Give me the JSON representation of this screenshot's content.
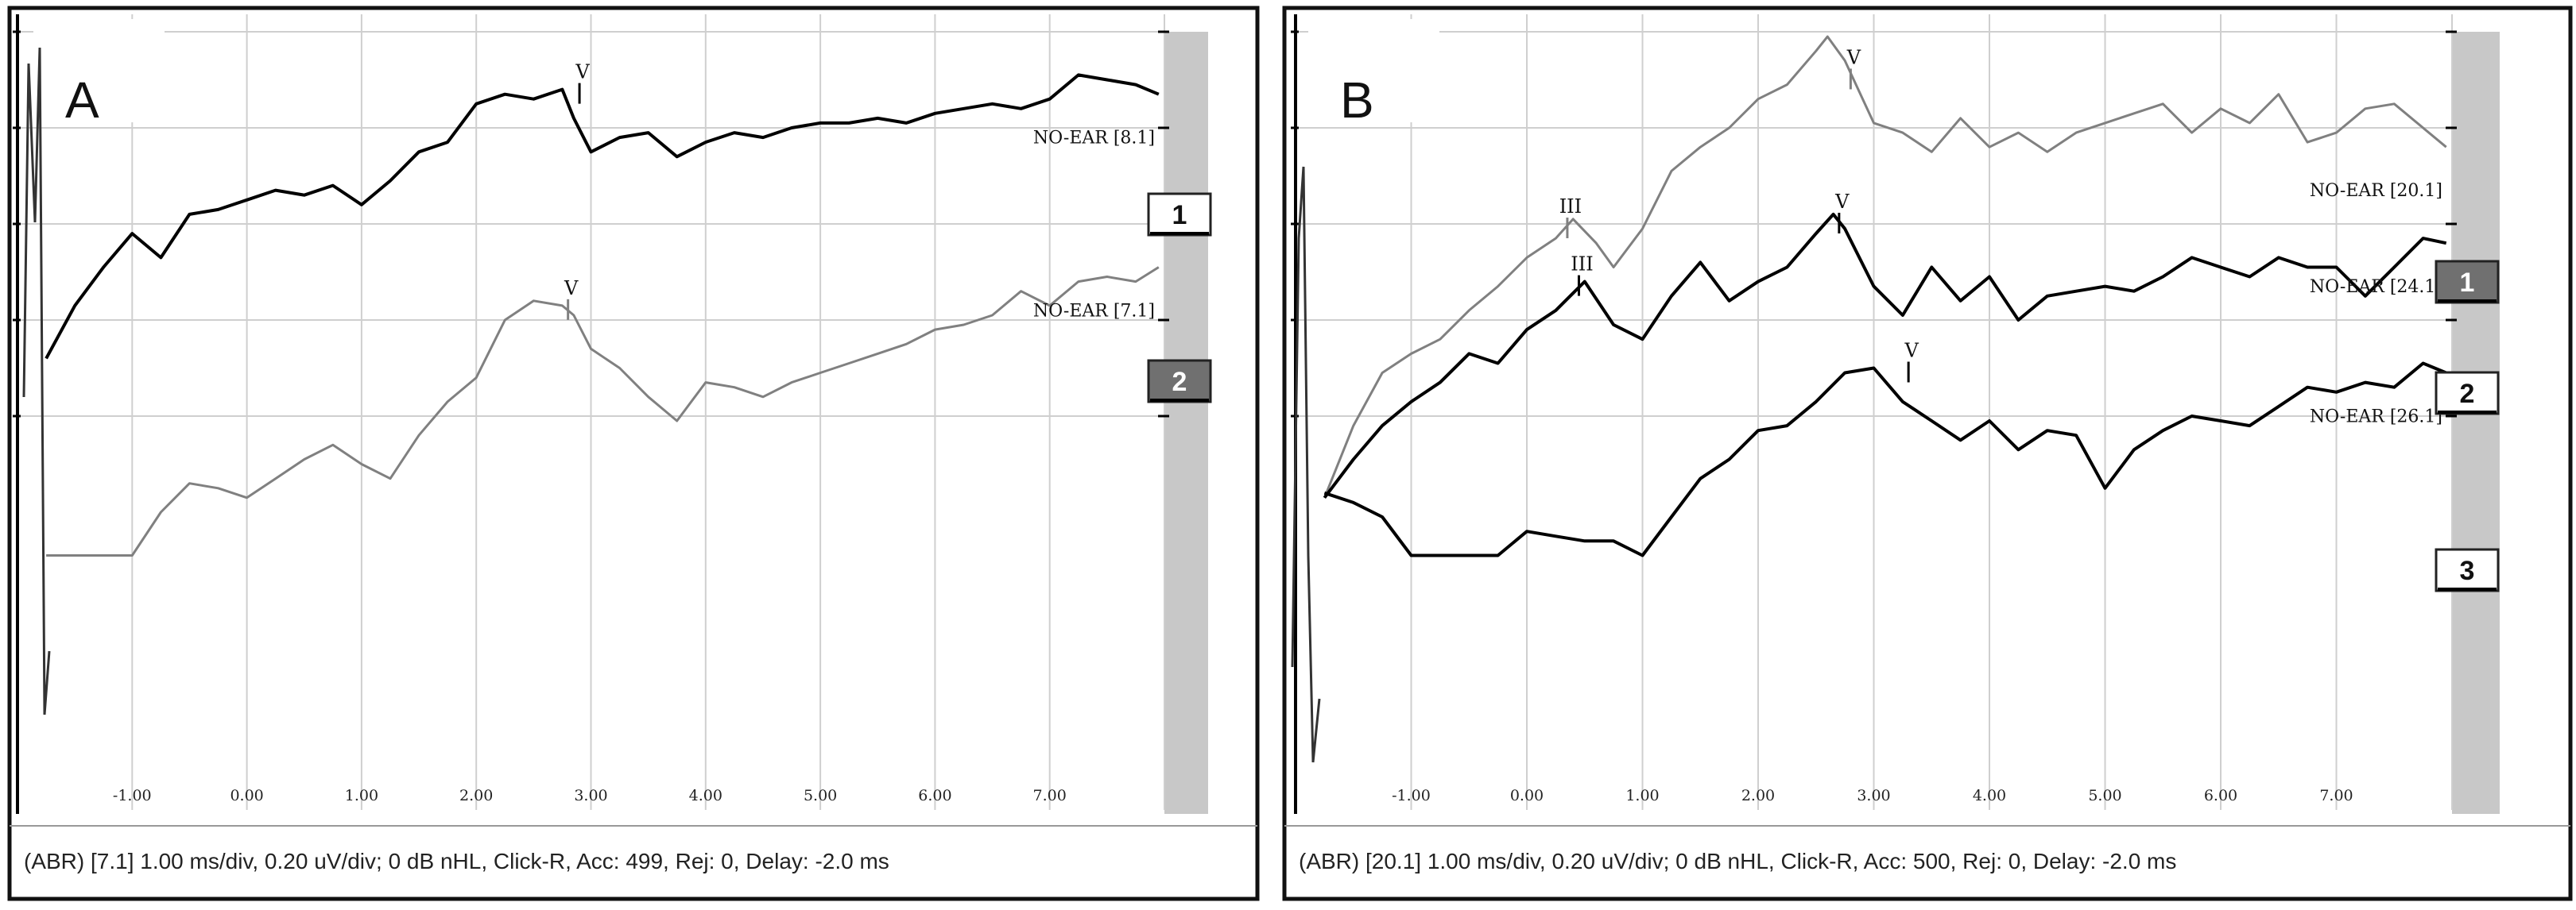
{
  "chart_data": [
    {
      "type": "line",
      "panel_label": "A",
      "status": "(ABR) [7.1]  1.00 ms/div,  0.20 uV/div;  0 dB nHL,  Click-R,  Acc: 499,  Rej: 0,  Delay: -2.0 ms",
      "x_ticks": [
        "-1.00",
        "0.00",
        "1.00",
        "2.00",
        "3.00",
        "4.00",
        "5.00",
        "6.00",
        "7.00"
      ],
      "xlim": [
        -2.0,
        8.0
      ],
      "channels": [
        {
          "label": "1",
          "active": false
        },
        {
          "label": "2",
          "active": true
        }
      ],
      "series": [
        {
          "tag": "NO-EAR [8.1]",
          "color": "#000000",
          "stroke": 4,
          "x": [
            -1.75,
            -1.5,
            -1.25,
            -1.0,
            -0.75,
            -0.5,
            -0.25,
            0.0,
            0.25,
            0.5,
            0.75,
            1.0,
            1.25,
            1.5,
            1.75,
            2.0,
            2.25,
            2.5,
            2.75,
            2.85,
            3.0,
            3.25,
            3.5,
            3.75,
            4.0,
            4.25,
            4.5,
            4.75,
            5.0,
            5.25,
            5.5,
            5.75,
            6.0,
            6.25,
            6.5,
            6.75,
            7.0,
            7.25,
            7.5,
            7.75,
            7.95
          ],
          "y": [
            -1.9,
            -1.35,
            -0.95,
            -0.6,
            -0.85,
            -0.4,
            -0.35,
            -0.25,
            -0.15,
            -0.2,
            -0.1,
            -0.3,
            -0.05,
            0.25,
            0.35,
            0.75,
            0.85,
            0.8,
            0.9,
            0.6,
            0.25,
            0.4,
            0.45,
            0.2,
            0.35,
            0.45,
            0.4,
            0.5,
            0.55,
            0.55,
            0.6,
            0.55,
            0.65,
            0.7,
            0.75,
            0.7,
            0.8,
            1.05,
            1.0,
            0.95,
            0.85
          ],
          "peaks": [
            {
              "label": "V",
              "x": 2.9,
              "y": 0.9
            }
          ]
        },
        {
          "tag": "NO-EAR [7.1]",
          "color": "#808080",
          "stroke": 3,
          "x": [
            -1.75,
            -1.5,
            -1.0,
            -0.75,
            -0.5,
            -0.25,
            0.0,
            0.25,
            0.5,
            0.75,
            1.0,
            1.25,
            1.5,
            1.75,
            2.0,
            2.25,
            2.5,
            2.75,
            2.85,
            3.0,
            3.25,
            3.5,
            3.75,
            4.0,
            4.25,
            4.5,
            4.75,
            5.0,
            5.25,
            5.5,
            5.75,
            6.0,
            6.25,
            6.5,
            6.75,
            7.0,
            7.25,
            7.5,
            7.75,
            7.95
          ],
          "y": [
            -3.95,
            -3.95,
            -3.95,
            -3.5,
            -3.2,
            -3.25,
            -3.35,
            -3.15,
            -2.95,
            -2.8,
            -3.0,
            -3.15,
            -2.7,
            -2.35,
            -2.1,
            -1.5,
            -1.3,
            -1.35,
            -1.45,
            -1.8,
            -2.0,
            -2.3,
            -2.55,
            -2.15,
            -2.2,
            -2.3,
            -2.15,
            -2.05,
            -1.95,
            -1.85,
            -1.75,
            -1.6,
            -1.55,
            -1.45,
            -1.2,
            -1.35,
            -1.1,
            -1.05,
            -1.1,
            -0.95
          ],
          "peaks": [
            {
              "label": "V",
              "x": 2.8,
              "y": -1.35
            }
          ]
        }
      ]
    },
    {
      "type": "line",
      "panel_label": "B",
      "status": "(ABR) [20.1]  1.00 ms/div,  0.20 uV/div;  0 dB nHL,  Click-R,  Acc: 500,  Rej: 0,  Delay: -2.0 ms",
      "x_ticks": [
        "-1.00",
        "0.00",
        "1.00",
        "2.00",
        "3.00",
        "4.00",
        "5.00",
        "6.00",
        "7.00"
      ],
      "xlim": [
        -2.0,
        8.0
      ],
      "channels": [
        {
          "label": "1",
          "active": true
        },
        {
          "label": "2",
          "active": false
        },
        {
          "label": "3",
          "active": false
        }
      ],
      "series": [
        {
          "tag": "NO-EAR [20.1]",
          "color": "#808080",
          "stroke": 3,
          "x": [
            -1.75,
            -1.5,
            -1.25,
            -1.0,
            -0.75,
            -0.5,
            -0.25,
            0.0,
            0.25,
            0.4,
            0.6,
            0.75,
            1.0,
            1.25,
            1.5,
            1.75,
            2.0,
            2.25,
            2.5,
            2.6,
            2.75,
            3.0,
            3.25,
            3.5,
            3.75,
            4.0,
            4.25,
            4.5,
            4.75,
            5.0,
            5.25,
            5.5,
            5.75,
            6.0,
            6.25,
            6.5,
            6.75,
            7.0,
            7.25,
            7.5,
            7.75,
            7.95
          ],
          "y": [
            -3.35,
            -2.6,
            -2.05,
            -1.85,
            -1.7,
            -1.4,
            -1.15,
            -0.85,
            -0.65,
            -0.45,
            -0.7,
            -0.95,
            -0.55,
            0.05,
            0.3,
            0.5,
            0.8,
            0.95,
            1.3,
            1.45,
            1.2,
            0.55,
            0.45,
            0.25,
            0.6,
            0.3,
            0.45,
            0.25,
            0.45,
            0.55,
            0.65,
            0.75,
            0.45,
            0.7,
            0.55,
            0.85,
            0.35,
            0.45,
            0.7,
            0.75,
            0.5,
            0.3
          ],
          "peaks": [
            {
              "label": "III",
              "x": 0.35,
              "y": -0.5
            },
            {
              "label": "V",
              "x": 2.8,
              "y": 1.05
            }
          ]
        },
        {
          "tag": "NO-EAR [24.1]",
          "color": "#000000",
          "stroke": 4,
          "x": [
            -1.75,
            -1.5,
            -1.25,
            -1.0,
            -0.75,
            -0.5,
            -0.25,
            0.0,
            0.25,
            0.5,
            0.75,
            1.0,
            1.25,
            1.5,
            1.75,
            2.0,
            2.25,
            2.5,
            2.65,
            2.75,
            3.0,
            3.25,
            3.5,
            3.75,
            4.0,
            4.25,
            4.5,
            4.75,
            5.0,
            5.25,
            5.5,
            5.75,
            6.0,
            6.25,
            6.5,
            6.75,
            7.0,
            7.25,
            7.5,
            7.75,
            7.95
          ],
          "y": [
            -3.35,
            -2.95,
            -2.6,
            -2.35,
            -2.15,
            -1.85,
            -1.95,
            -1.6,
            -1.4,
            -1.1,
            -1.55,
            -1.7,
            -1.25,
            -0.9,
            -1.3,
            -1.1,
            -0.95,
            -0.6,
            -0.4,
            -0.55,
            -1.15,
            -1.45,
            -0.95,
            -1.3,
            -1.05,
            -1.5,
            -1.25,
            -1.2,
            -1.15,
            -1.2,
            -1.05,
            -0.85,
            -0.95,
            -1.05,
            -0.85,
            -0.95,
            -0.95,
            -1.25,
            -0.95,
            -0.65,
            -0.7
          ],
          "peaks": [
            {
              "label": "III",
              "x": 0.45,
              "y": -1.1
            },
            {
              "label": "V",
              "x": 2.7,
              "y": -0.45
            }
          ]
        },
        {
          "tag": "NO-EAR [26.1]",
          "color": "#000000",
          "stroke": 4,
          "x": [
            -1.75,
            -1.5,
            -1.25,
            -1.0,
            -0.75,
            -0.5,
            -0.25,
            0.0,
            0.25,
            0.5,
            0.75,
            1.0,
            1.25,
            1.5,
            1.75,
            2.0,
            2.25,
            2.5,
            2.75,
            3.0,
            3.25,
            3.5,
            3.75,
            4.0,
            4.25,
            4.5,
            4.75,
            5.0,
            5.25,
            5.5,
            5.75,
            6.0,
            6.25,
            6.5,
            6.75,
            7.0,
            7.25,
            7.5,
            7.75,
            7.95
          ],
          "y": [
            -3.3,
            -3.4,
            -3.55,
            -3.95,
            -3.95,
            -3.95,
            -3.95,
            -3.7,
            -3.75,
            -3.8,
            -3.8,
            -3.95,
            -3.55,
            -3.15,
            -2.95,
            -2.65,
            -2.6,
            -2.35,
            -2.05,
            -2.0,
            -2.35,
            -2.55,
            -2.75,
            -2.55,
            -2.85,
            -2.65,
            -2.7,
            -3.25,
            -2.85,
            -2.65,
            -2.5,
            -2.55,
            -2.6,
            -2.4,
            -2.2,
            -2.25,
            -2.15,
            -2.2,
            -1.95,
            -2.05
          ],
          "peaks": [
            {
              "label": "V",
              "x": 3.3,
              "y": -2.0
            }
          ]
        }
      ]
    }
  ]
}
